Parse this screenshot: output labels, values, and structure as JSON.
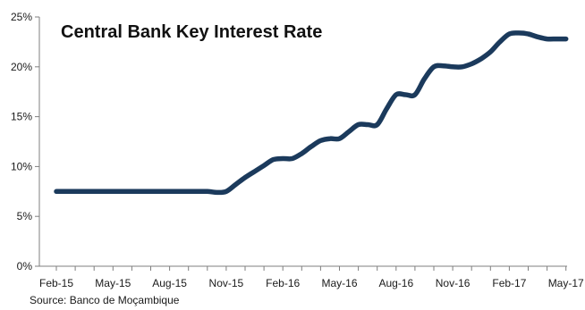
{
  "chart_data": {
    "type": "line",
    "title": "Central Bank Key Interest Rate",
    "source": "Source: Banco de Moçambique",
    "xlabel": "",
    "ylabel": "",
    "ylim": [
      0,
      25
    ],
    "y_ticks": [
      "0%",
      "5%",
      "10%",
      "15%",
      "20%",
      "25%"
    ],
    "y_tick_values": [
      0,
      5,
      10,
      15,
      20,
      25
    ],
    "x_ticks": [
      "Feb-15",
      "May-15",
      "Aug-15",
      "Nov-15",
      "Feb-16",
      "May-16",
      "Aug-16",
      "Nov-16",
      "Feb-17",
      "May-17"
    ],
    "grid": false,
    "legend": "none",
    "colors": {
      "line": "#1b3a5c",
      "axis": "#7f7f7f",
      "text": "#1a1a1a"
    },
    "series": [
      {
        "x": [
          0,
          1,
          2,
          3,
          4,
          5,
          6,
          7,
          8,
          8.5,
          9,
          9.5,
          10,
          10.5,
          11,
          11.5,
          12,
          12.5,
          13,
          13.5,
          14,
          14.5,
          15,
          15.5,
          16,
          16.5,
          17,
          17.5,
          18,
          18.5,
          19,
          19.5,
          20,
          20.5,
          21,
          21.5,
          22,
          22.5,
          23,
          23.5,
          24,
          24.5,
          25,
          25.5,
          26,
          26.5,
          27
        ],
        "values": [
          7.5,
          7.5,
          7.5,
          7.5,
          7.5,
          7.5,
          7.5,
          7.5,
          7.5,
          7.4,
          7.5,
          8.2,
          8.9,
          9.5,
          10.1,
          10.7,
          10.8,
          10.8,
          11.3,
          12.0,
          12.6,
          12.8,
          12.8,
          13.5,
          14.2,
          14.2,
          14.2,
          15.8,
          17.2,
          17.2,
          17.2,
          18.8,
          20.0,
          20.1,
          20.0,
          20.0,
          20.3,
          20.8,
          21.5,
          22.5,
          23.3,
          23.4,
          23.3,
          23.0,
          22.8,
          22.8,
          22.8
        ]
      }
    ]
  }
}
